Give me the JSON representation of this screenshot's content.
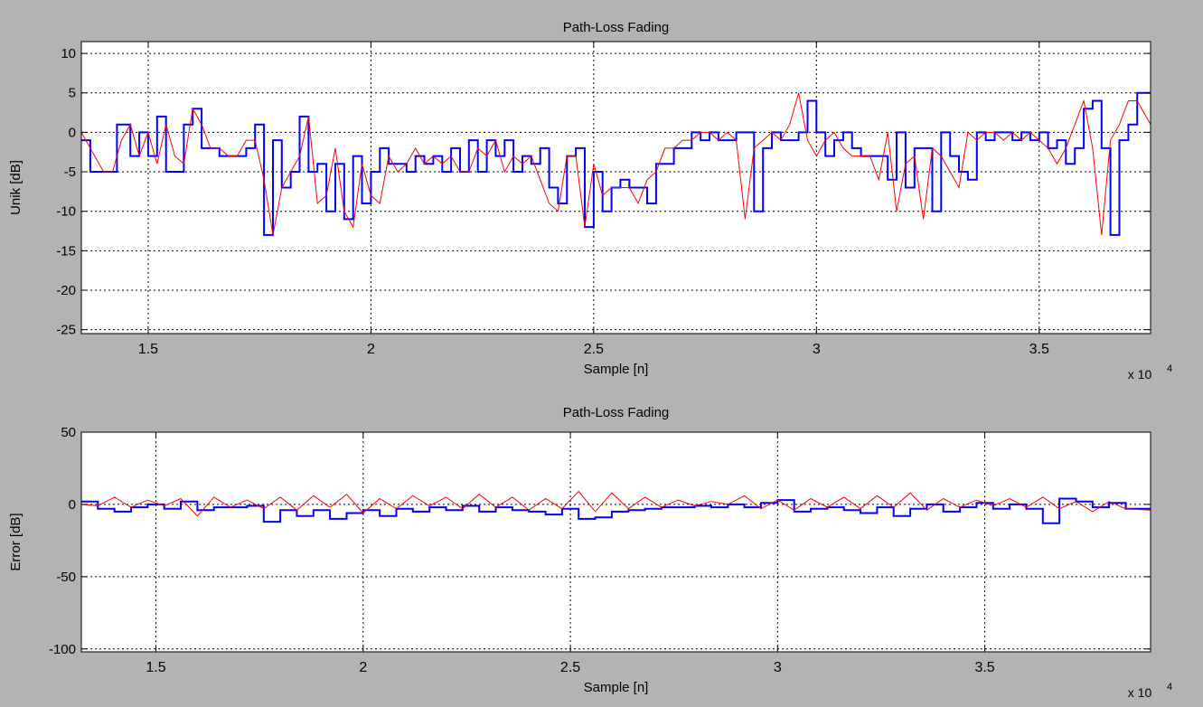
{
  "window": {
    "background": "#b3b3b3"
  },
  "chart_data": [
    {
      "type": "line",
      "title": "Path-Loss Fading",
      "xlabel": "Sample [n]",
      "ylabel": "Unik [dB]",
      "x_exponent_label": "x 10",
      "x_exponent_power": "4",
      "xlim": [
        13500,
        37500
      ],
      "ylim": [
        -25.5,
        11.5
      ],
      "xticks": [
        15000,
        20000,
        25000,
        30000,
        35000
      ],
      "xtick_labels": [
        "1.5",
        "2",
        "2.5",
        "3",
        "3.5"
      ],
      "yticks": [
        -25,
        -20,
        -15,
        -10,
        -5,
        0,
        5,
        10
      ],
      "ytick_labels": [
        "-25",
        "-20",
        "-15",
        "-10",
        "-5",
        "0",
        "5",
        "10"
      ],
      "grid": true,
      "series": [
        {
          "color": "#0000ff",
          "style": "stairs",
          "x": [
            13500,
            13700,
            13900,
            14300,
            14600,
            14800,
            15000,
            15200,
            15400,
            15600,
            15800,
            16000,
            16200,
            16400,
            16600,
            16800,
            17000,
            17200,
            17400,
            17600,
            17800,
            18000,
            18200,
            18400,
            18600,
            18800,
            19000,
            19200,
            19400,
            19600,
            19800,
            20000,
            20200,
            20400,
            20600,
            20800,
            21000,
            21200,
            21400,
            21600,
            21800,
            22000,
            22200,
            22400,
            22600,
            22800,
            23000,
            23200,
            23400,
            23600,
            23800,
            24000,
            24200,
            24400,
            24600,
            24800,
            25000,
            25200,
            25400,
            25600,
            25800,
            26000,
            26200,
            26400,
            26600,
            26800,
            27000,
            27200,
            27400,
            27600,
            27800,
            28000,
            28200,
            28400,
            28600,
            28800,
            29000,
            29200,
            29400,
            29600,
            29800,
            30000,
            30200,
            30400,
            30600,
            30800,
            31000,
            31200,
            31400,
            31600,
            31800,
            32000,
            32200,
            32400,
            32600,
            32800,
            33000,
            33200,
            33400,
            33600,
            33800,
            34000,
            34200,
            34400,
            34600,
            34800,
            35000,
            35200,
            35400,
            35600,
            35800,
            36000,
            36200,
            36400,
            36600,
            36800,
            37000,
            37200,
            37500
          ],
          "y": [
            -1,
            -5,
            -5,
            1,
            -3,
            0,
            -3,
            2,
            -5,
            -5,
            1,
            3,
            -2,
            -2,
            -3,
            -3,
            -3,
            -2,
            1,
            -13,
            -1,
            -7,
            -5,
            2,
            -5,
            -4,
            -10,
            -4,
            -11,
            -3,
            -9,
            -5,
            -2,
            -4,
            -4,
            -5,
            -3,
            -4,
            -3,
            -5,
            -2,
            -5,
            -1,
            -5,
            -1,
            -3,
            -1,
            -5,
            -3,
            -4,
            -2,
            -7,
            -9,
            -3,
            -2,
            -12,
            -5,
            -10,
            -7,
            -6,
            -7,
            -7,
            -9,
            -4,
            -4,
            -2,
            -2,
            0,
            -1,
            0,
            -1,
            -1,
            0,
            0,
            -10,
            -2,
            0,
            -1,
            -1,
            0,
            4,
            0,
            -3,
            -1,
            0,
            -2,
            -3,
            -3,
            -3,
            -6,
            0,
            -7,
            -2,
            -2,
            -10,
            0,
            -3,
            -5,
            -6,
            0,
            -1,
            0,
            0,
            -1,
            0,
            -1,
            0,
            -2,
            -1,
            -4,
            -2,
            3,
            4,
            -2,
            -13,
            -1,
            1,
            5,
            5
          ],
          "width": 2
        },
        {
          "color": "#ff0000",
          "style": "line",
          "x": [
            13500,
            13800,
            14000,
            14200,
            14400,
            14600,
            14800,
            15000,
            15200,
            15400,
            15600,
            15800,
            16000,
            16200,
            16400,
            16600,
            16800,
            17000,
            17200,
            17400,
            17600,
            17800,
            18000,
            18200,
            18400,
            18600,
            18800,
            19000,
            19200,
            19400,
            19600,
            19800,
            20000,
            20200,
            20400,
            20600,
            20800,
            21000,
            21200,
            21400,
            21600,
            21800,
            22000,
            22200,
            22400,
            22600,
            22800,
            23000,
            23200,
            23400,
            23600,
            23800,
            24000,
            24200,
            24400,
            24600,
            24800,
            25000,
            25200,
            25400,
            25600,
            25800,
            26000,
            26200,
            26400,
            26600,
            26800,
            27000,
            27200,
            27400,
            27600,
            27800,
            28000,
            28200,
            28400,
            28600,
            28800,
            29000,
            29200,
            29400,
            29600,
            29800,
            30000,
            30200,
            30400,
            30600,
            30800,
            31000,
            31200,
            31400,
            31600,
            31800,
            32000,
            32200,
            32400,
            32600,
            32800,
            33000,
            33200,
            33400,
            33600,
            33800,
            34000,
            34200,
            34400,
            34600,
            34800,
            35000,
            35200,
            35400,
            35600,
            35800,
            36000,
            36200,
            36400,
            36600,
            36800,
            37000,
            37200,
            37500
          ],
          "y": [
            0,
            -3,
            -5,
            -5,
            -1,
            1,
            -3,
            0,
            -4,
            1,
            -3,
            -4,
            3,
            1,
            -2,
            -2,
            -3,
            -3,
            -1,
            -1,
            -6,
            -13,
            -7,
            -5,
            -3,
            2,
            -9,
            -8,
            -2,
            -10,
            -12,
            -4,
            -8,
            -9,
            -3,
            -5,
            -4,
            -2,
            -4,
            -3,
            -4,
            -3,
            -5,
            -5,
            -2,
            -3,
            -1,
            -5,
            -3,
            -4,
            -3,
            -6,
            -9,
            -10,
            -3,
            -3,
            -12,
            -4,
            -8,
            -7,
            -7,
            -7,
            -9,
            -6,
            -5,
            -2,
            -2,
            -1,
            -1,
            0,
            0,
            -1,
            0,
            -1,
            -11,
            -2,
            -1,
            0,
            -1,
            1,
            5,
            -1,
            -3,
            -1,
            0,
            -2,
            -3,
            -3,
            -3,
            -6,
            0,
            -10,
            -4,
            -3,
            -11,
            -2,
            -3,
            -5,
            -7,
            0,
            -1,
            0,
            0,
            -1,
            0,
            -1,
            0,
            -1,
            -2,
            -4,
            -2,
            1,
            4,
            -2,
            -13,
            -1,
            1,
            4,
            4,
            1
          ],
          "width": 1
        }
      ]
    },
    {
      "type": "line",
      "title": "Path-Loss Fading",
      "xlabel": "Sample [n]",
      "ylabel": "Error [dB]",
      "x_exponent_label": "x 10",
      "x_exponent_power": "4",
      "xlim": [
        13200,
        39000
      ],
      "ylim": [
        -102,
        50
      ],
      "xticks": [
        15000,
        20000,
        25000,
        30000,
        35000
      ],
      "xtick_labels": [
        "1.5",
        "2",
        "2.5",
        "3",
        "3.5"
      ],
      "yticks": [
        -100,
        -50,
        0,
        50
      ],
      "ytick_labels": [
        "-100",
        "-50",
        "0",
        "50"
      ],
      "grid": true,
      "series": [
        {
          "color": "#0000ff",
          "style": "stairs",
          "x": [
            13200,
            13600,
            14000,
            14400,
            14800,
            15200,
            15600,
            16000,
            16400,
            16800,
            17200,
            17600,
            18000,
            18400,
            18800,
            19200,
            19600,
            20000,
            20400,
            20800,
            21200,
            21600,
            22000,
            22400,
            22800,
            23200,
            23600,
            24000,
            24400,
            24800,
            25200,
            25600,
            26000,
            26400,
            26800,
            27200,
            27600,
            28000,
            28400,
            28800,
            29200,
            29600,
            30000,
            30400,
            30800,
            31200,
            31600,
            32000,
            32400,
            32800,
            33200,
            33600,
            34000,
            34400,
            34800,
            35200,
            35600,
            36000,
            36400,
            36800,
            37200,
            37600,
            38000,
            38400,
            39000
          ],
          "y": [
            2,
            -3,
            -5,
            -2,
            0,
            -3,
            2,
            -4,
            -2,
            -2,
            -1,
            -12,
            -4,
            -8,
            -4,
            -10,
            -6,
            -4,
            -8,
            -3,
            -5,
            -2,
            -4,
            -1,
            -5,
            -2,
            -4,
            -5,
            -7,
            -3,
            -10,
            -9,
            -5,
            -4,
            -3,
            -2,
            -2,
            -1,
            -2,
            0,
            -2,
            1,
            3,
            -5,
            -3,
            -2,
            -4,
            -6,
            -2,
            -8,
            -3,
            0,
            -5,
            -2,
            1,
            -3,
            0,
            -3,
            -13,
            4,
            2,
            -2,
            1,
            -3,
            -3
          ],
          "width": 2
        },
        {
          "color": "#ff0000",
          "style": "line",
          "x": [
            13200,
            13600,
            14000,
            14400,
            14800,
            15200,
            15600,
            16000,
            16400,
            16800,
            17200,
            17600,
            18000,
            18400,
            18800,
            19200,
            19600,
            20000,
            20400,
            20800,
            21200,
            21600,
            22000,
            22400,
            22800,
            23200,
            23600,
            24000,
            24400,
            24800,
            25200,
            25600,
            26000,
            26400,
            26800,
            27200,
            27600,
            28000,
            28400,
            28800,
            29200,
            29600,
            30000,
            30400,
            30800,
            31200,
            31600,
            32000,
            32400,
            32800,
            33200,
            33600,
            34000,
            34400,
            34800,
            35200,
            35600,
            36000,
            36400,
            36800,
            37200,
            37600,
            38000,
            38400,
            39000
          ],
          "y": [
            0,
            -1,
            5,
            -2,
            3,
            -1,
            4,
            -8,
            5,
            -2,
            3,
            -3,
            5,
            -4,
            6,
            -2,
            7,
            -6,
            4,
            -3,
            6,
            -1,
            5,
            -3,
            7,
            -2,
            5,
            -4,
            4,
            -3,
            9,
            -5,
            8,
            -3,
            5,
            -2,
            3,
            -1,
            2,
            0,
            6,
            -3,
            3,
            -4,
            4,
            -2,
            5,
            -3,
            6,
            -2,
            8,
            -4,
            4,
            -2,
            3,
            -1,
            4,
            -2,
            5,
            -3,
            2,
            -5,
            2,
            -3,
            -4
          ],
          "width": 1
        }
      ]
    }
  ]
}
